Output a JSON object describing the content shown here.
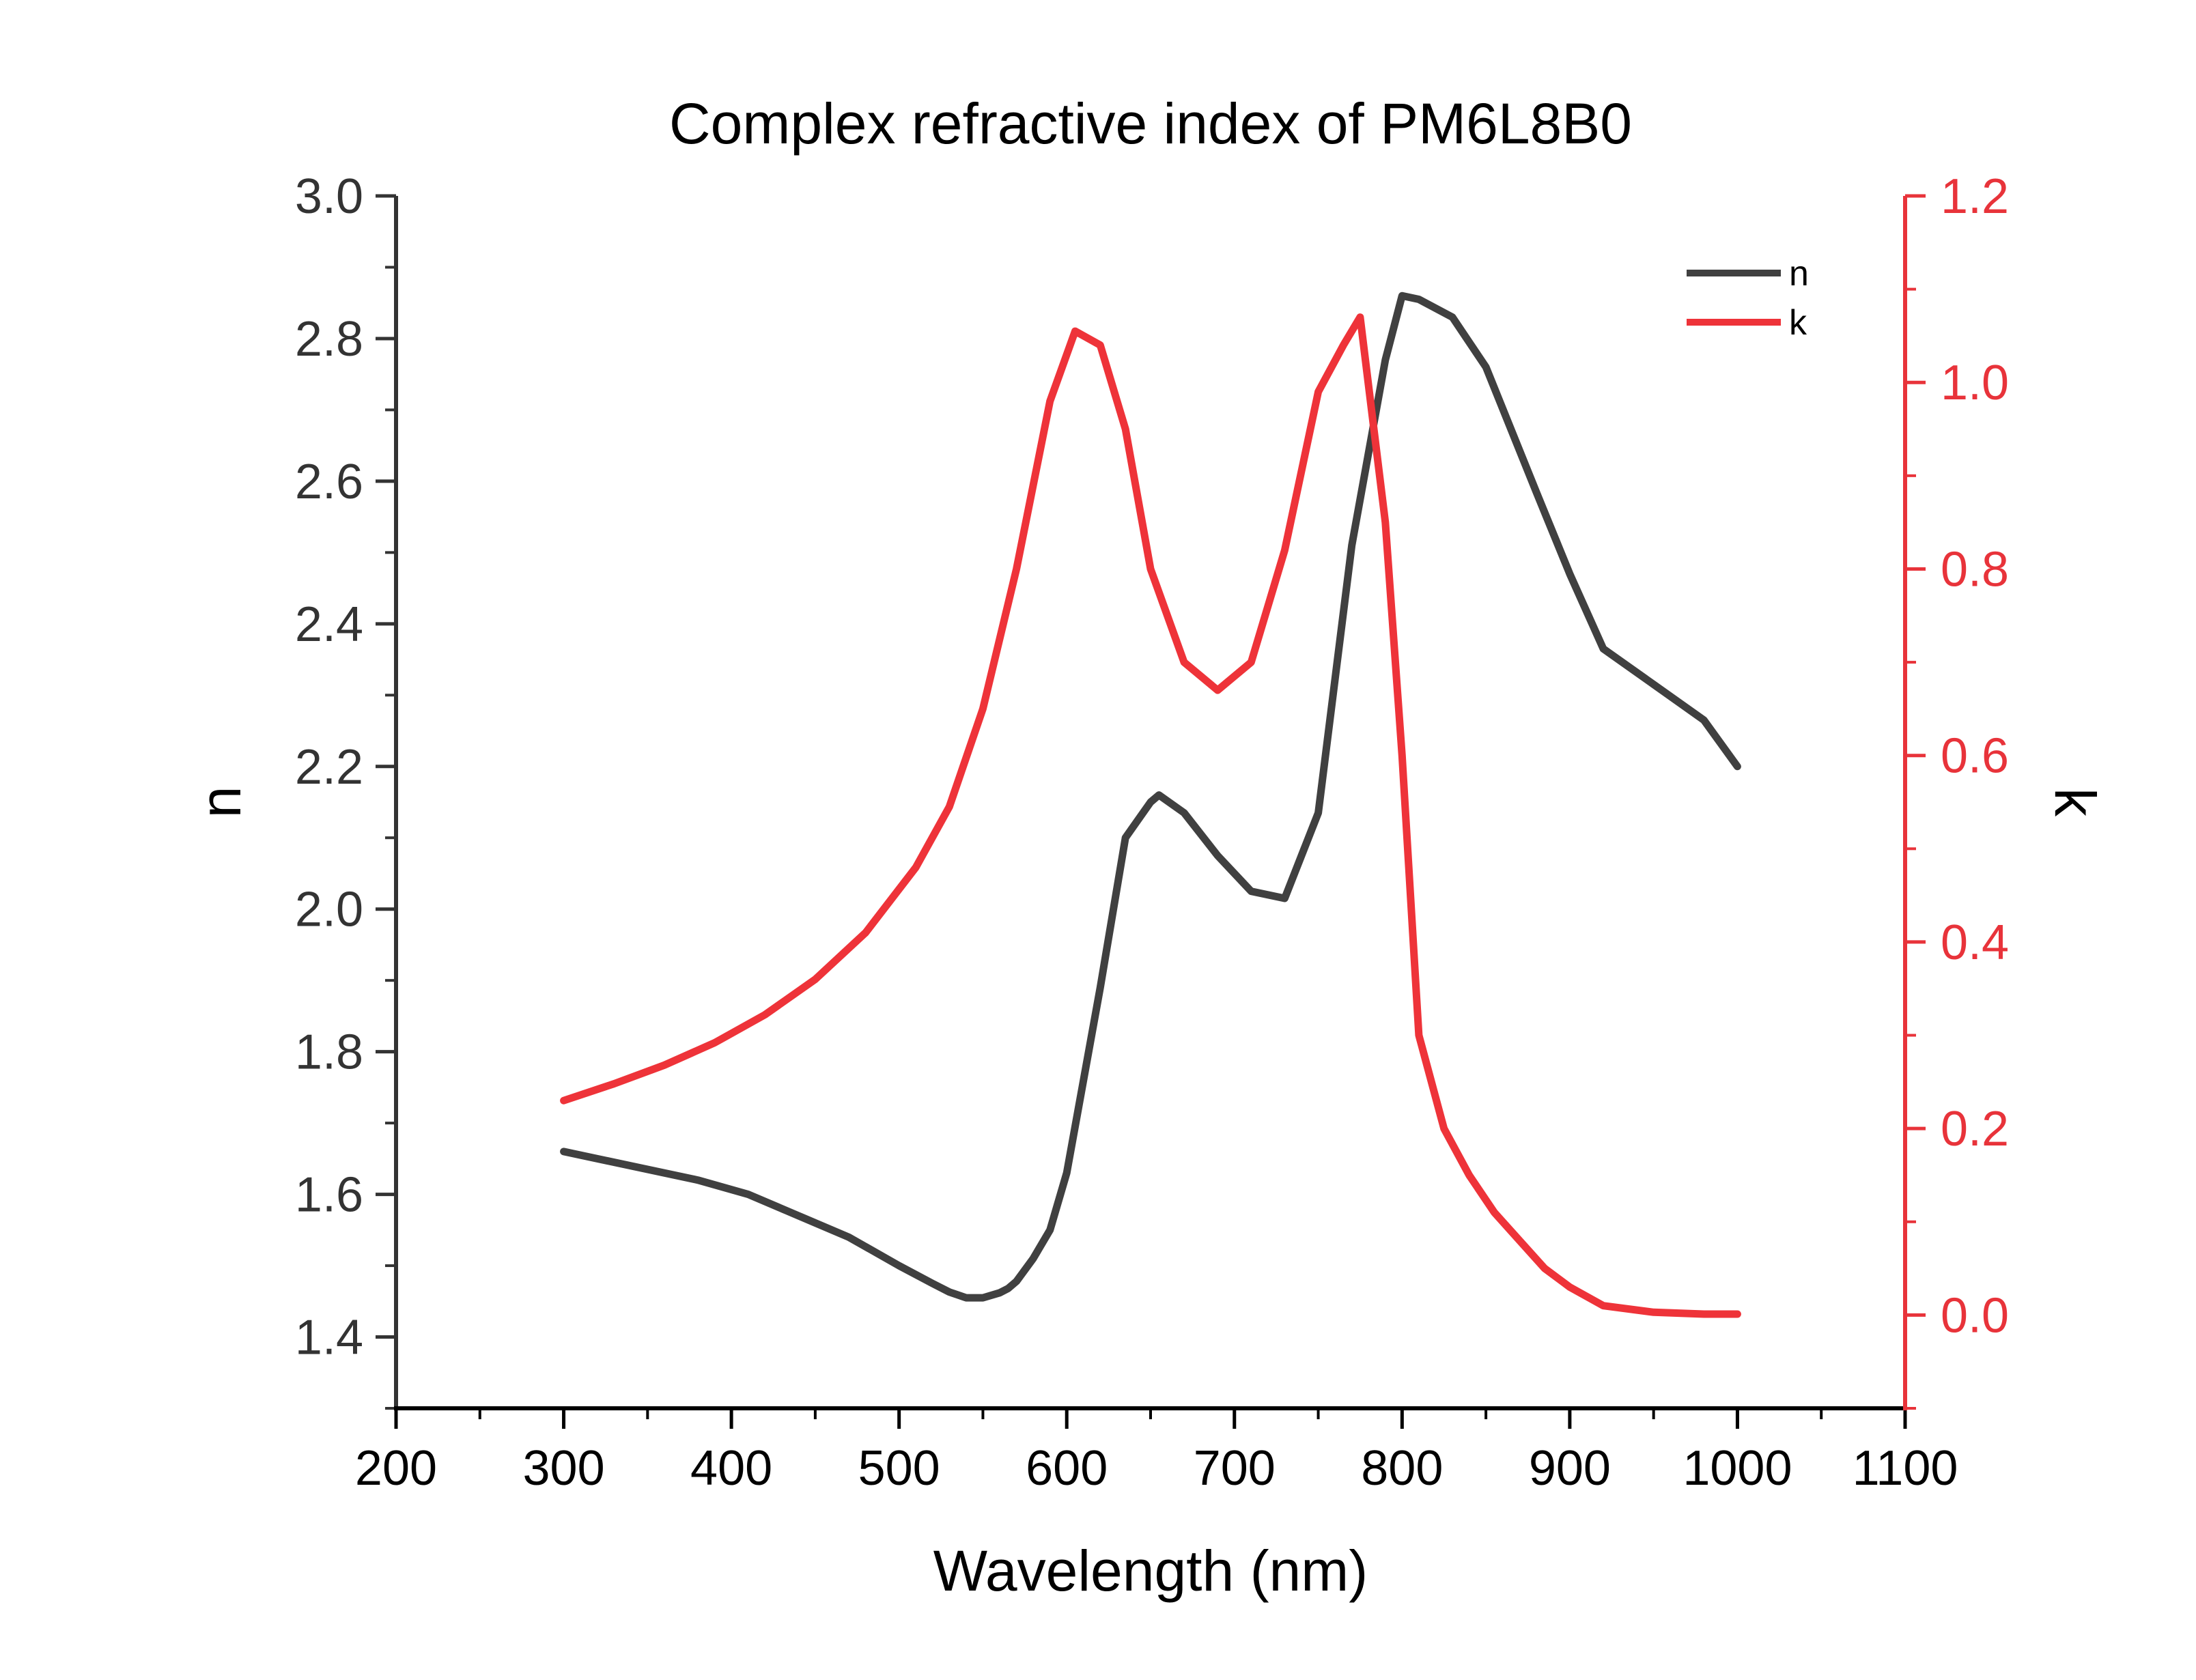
{
  "chart_data": {
    "type": "line",
    "title": "Complex refractive index of PM6L8B0",
    "xlabel": "Wavelength (nm)",
    "ylabel_left": "n",
    "ylabel_right": "k",
    "xlim": [
      200,
      1100
    ],
    "ylim_left": [
      1.3,
      3.0
    ],
    "ylim_right": [
      -0.1,
      1.2
    ],
    "x_ticks": [
      "200",
      "300",
      "400",
      "500",
      "600",
      "700",
      "800",
      "900",
      "1000",
      "1100"
    ],
    "y_left_ticks": [
      "1.4",
      "1.6",
      "1.8",
      "2.0",
      "2.2",
      "2.4",
      "2.6",
      "2.8",
      "3.0"
    ],
    "y_right_ticks": [
      "0.0",
      "0.2",
      "0.4",
      "0.6",
      "0.8",
      "1.0",
      "1.2"
    ],
    "legend_position": "top-right",
    "grid": false,
    "series": [
      {
        "name": "n",
        "axis": "left",
        "color": "#404040",
        "x": [
          300,
          320,
          350,
          380,
          410,
          440,
          470,
          500,
          520,
          530,
          540,
          550,
          560,
          565,
          570,
          580,
          590,
          600,
          620,
          635,
          650,
          655,
          670,
          690,
          710,
          730,
          750,
          770,
          790,
          800,
          810,
          830,
          850,
          880,
          900,
          920,
          950,
          980,
          1000
        ],
        "y": [
          1.66,
          1.65,
          1.635,
          1.62,
          1.6,
          1.57,
          1.54,
          1.5,
          1.475,
          1.463,
          1.455,
          1.455,
          1.462,
          1.468,
          1.478,
          1.51,
          1.55,
          1.63,
          1.89,
          2.1,
          2.15,
          2.16,
          2.135,
          2.075,
          2.025,
          2.015,
          2.135,
          2.51,
          2.77,
          2.86,
          2.855,
          2.83,
          2.76,
          2.585,
          2.47,
          2.365,
          2.315,
          2.265,
          2.2
        ]
      },
      {
        "name": "k",
        "axis": "right",
        "color": "#ee3339",
        "x": [
          300,
          330,
          360,
          390,
          420,
          450,
          480,
          510,
          530,
          550,
          570,
          590,
          605,
          620,
          635,
          650,
          670,
          690,
          710,
          730,
          750,
          765,
          775,
          790,
          800,
          810,
          825,
          840,
          855,
          870,
          885,
          900,
          920,
          950,
          980,
          1000
        ],
        "y": [
          0.23,
          0.248,
          0.268,
          0.292,
          0.322,
          0.36,
          0.41,
          0.48,
          0.545,
          0.65,
          0.8,
          0.98,
          1.055,
          1.04,
          0.95,
          0.8,
          0.7,
          0.67,
          0.7,
          0.82,
          0.99,
          1.04,
          1.07,
          0.85,
          0.6,
          0.3,
          0.2,
          0.15,
          0.11,
          0.08,
          0.05,
          0.03,
          0.01,
          0.003,
          0.001,
          0.001
        ]
      }
    ]
  }
}
